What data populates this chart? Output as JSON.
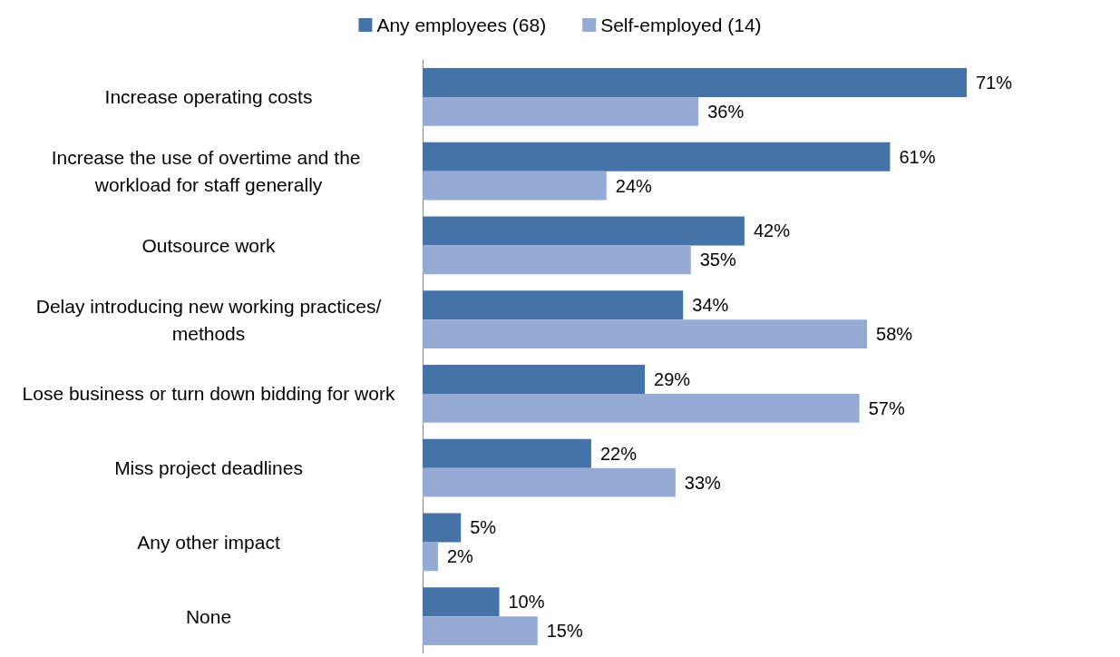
{
  "chart_data": {
    "type": "bar",
    "orientation": "horizontal",
    "tick_labels": "y",
    "legend": "top",
    "categories": [
      "Increase operating costs",
      "Increase the use of overtime and the workload for staff generally",
      "Outsource work",
      "Delay introducing new working practices/methods",
      "Lose business or turn down bidding for work",
      "Miss project deadlines",
      "Any other impact",
      "None"
    ],
    "series": [
      {
        "name": "Any employees (68)",
        "color": "#4572a7",
        "values": [
          71,
          61,
          42,
          34,
          29,
          22,
          5,
          10
        ],
        "value_labels": [
          "71%",
          "61%",
          "42%",
          "34%",
          "29%",
          "22%",
          "5%",
          "10%"
        ]
      },
      {
        "name": "Self-employed (14)",
        "color": "#95abd4",
        "values": [
          36,
          24,
          35,
          58,
          57,
          33,
          2,
          15
        ],
        "value_labels": [
          "36%",
          "24%",
          "35%",
          "58%",
          "57%",
          "33%",
          "2%",
          "15%"
        ]
      }
    ]
  }
}
